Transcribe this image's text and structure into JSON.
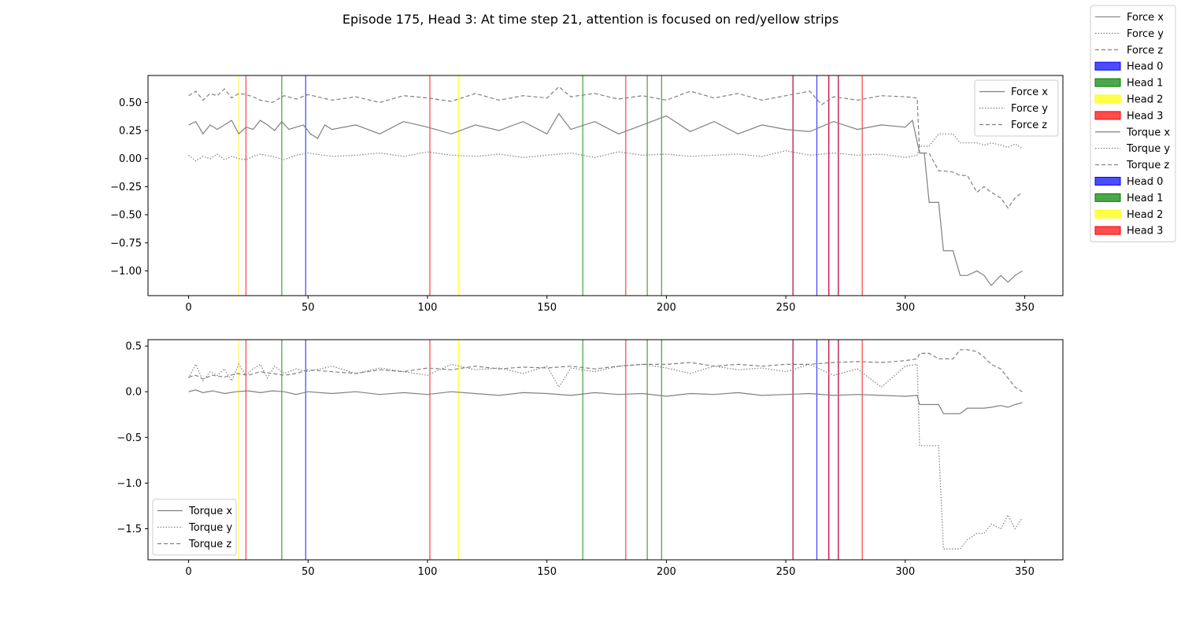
{
  "figure": {
    "title": "Episode 175, Head 3: At time step 21, attention is focused on red/yellow strips"
  },
  "figure_legend": [
    {
      "label": "Force x",
      "kind": "line",
      "dash": "solid"
    },
    {
      "label": "Force y",
      "kind": "line",
      "dash": "dotted"
    },
    {
      "label": "Force z",
      "kind": "line",
      "dash": "dashed"
    },
    {
      "label": "Head 0",
      "kind": "patch",
      "color": "#0000ff"
    },
    {
      "label": "Head 1",
      "kind": "patch",
      "color": "#008000"
    },
    {
      "label": "Head 2",
      "kind": "patch",
      "color": "#ffff00"
    },
    {
      "label": "Head 3",
      "kind": "patch",
      "color": "#ff0000"
    },
    {
      "label": "Torque x",
      "kind": "line",
      "dash": "solid"
    },
    {
      "label": "Torque y",
      "kind": "line",
      "dash": "dotted"
    },
    {
      "label": "Torque z",
      "kind": "line",
      "dash": "dashed"
    },
    {
      "label": "Head 0",
      "kind": "patch",
      "color": "#0000ff"
    },
    {
      "label": "Head 1",
      "kind": "patch",
      "color": "#008000"
    },
    {
      "label": "Head 2",
      "kind": "patch",
      "color": "#ffff00"
    },
    {
      "label": "Head 3",
      "kind": "patch",
      "color": "#ff0000"
    }
  ],
  "colors": {
    "line": "#808080",
    "head_0": "#0000ff",
    "head_1": "#008000",
    "head_2": "#ffff00",
    "head_3": "#ff0000"
  },
  "chart_data": [
    {
      "type": "line",
      "title": "",
      "xlabel": "",
      "ylabel": "",
      "xlim": [
        -17,
        366
      ],
      "ylim": [
        -1.22,
        0.74
      ],
      "xticks": [
        0,
        50,
        100,
        150,
        200,
        250,
        300,
        350
      ],
      "yticks": [
        -1.0,
        -0.75,
        -0.5,
        -0.25,
        0.0,
        0.25,
        0.5
      ],
      "ytick_labels": [
        "−1.00",
        "−0.75",
        "−0.50",
        "−0.25",
        "0.00",
        "0.25",
        "0.50"
      ],
      "legend_position": "upper right",
      "attention_strips": [
        {
          "x": 21,
          "head": "Head 2"
        },
        {
          "x": 24,
          "head": "Head 3"
        },
        {
          "x": 39,
          "head": "Head 1"
        },
        {
          "x": 49,
          "head": "Head 0"
        },
        {
          "x": 101,
          "head": "Head 3"
        },
        {
          "x": 113,
          "head": "Head 2"
        },
        {
          "x": 165,
          "head": "Head 1"
        },
        {
          "x": 183,
          "head": "Head 3"
        },
        {
          "x": 192,
          "head": "Head 1"
        },
        {
          "x": 198,
          "head": "Head 1"
        },
        {
          "x": 253,
          "head": "Head 0"
        },
        {
          "x": 253,
          "head": "Head 3"
        },
        {
          "x": 263,
          "head": "Head 0"
        },
        {
          "x": 268,
          "head": "Head 0"
        },
        {
          "x": 268,
          "head": "Head 3"
        },
        {
          "x": 272,
          "head": "Head 0"
        },
        {
          "x": 272,
          "head": "Head 3"
        },
        {
          "x": 282,
          "head": "Head 3"
        }
      ],
      "series": [
        {
          "name": "Force x",
          "dash": "solid",
          "x": [
            0,
            3,
            6,
            9,
            12,
            15,
            18,
            21,
            24,
            27,
            30,
            33,
            36,
            39,
            42,
            45,
            48,
            51,
            54,
            57,
            60,
            70,
            80,
            90,
            100,
            110,
            120,
            130,
            140,
            150,
            155,
            160,
            170,
            180,
            190,
            200,
            210,
            220,
            230,
            240,
            250,
            260,
            270,
            280,
            290,
            300,
            303,
            306,
            308,
            310,
            314,
            316,
            320,
            323,
            326,
            330,
            333,
            336,
            340,
            343,
            346,
            349
          ],
          "y": [
            0.3,
            0.33,
            0.22,
            0.3,
            0.26,
            0.3,
            0.34,
            0.22,
            0.28,
            0.26,
            0.34,
            0.3,
            0.25,
            0.33,
            0.26,
            0.28,
            0.3,
            0.22,
            0.18,
            0.3,
            0.26,
            0.3,
            0.22,
            0.33,
            0.28,
            0.22,
            0.3,
            0.25,
            0.33,
            0.22,
            0.4,
            0.26,
            0.33,
            0.22,
            0.3,
            0.38,
            0.24,
            0.33,
            0.22,
            0.3,
            0.26,
            0.24,
            0.33,
            0.26,
            0.3,
            0.28,
            0.34,
            0.05,
            0.05,
            -0.39,
            -0.39,
            -0.82,
            -0.82,
            -1.04,
            -1.04,
            -1.0,
            -1.04,
            -1.13,
            -1.04,
            -1.1,
            -1.04,
            -1.0
          ]
        },
        {
          "name": "Force y",
          "dash": "dotted",
          "x": [
            0,
            3,
            6,
            9,
            12,
            15,
            18,
            21,
            24,
            27,
            30,
            35,
            40,
            45,
            50,
            60,
            70,
            80,
            90,
            100,
            110,
            120,
            130,
            140,
            150,
            160,
            170,
            180,
            190,
            200,
            210,
            220,
            230,
            240,
            250,
            260,
            270,
            280,
            290,
            300,
            305,
            306,
            310,
            314,
            316,
            320,
            323,
            326,
            330,
            333,
            336,
            340,
            343,
            346,
            349
          ],
          "y": [
            0.03,
            -0.02,
            0.02,
            0.0,
            0.04,
            -0.01,
            0.02,
            0.0,
            -0.01,
            0.02,
            0.04,
            0.02,
            -0.01,
            0.03,
            0.05,
            0.02,
            0.03,
            0.05,
            0.02,
            0.06,
            0.03,
            0.02,
            0.04,
            0.01,
            0.03,
            0.05,
            0.01,
            0.06,
            0.03,
            0.04,
            0.02,
            0.03,
            0.04,
            0.02,
            0.07,
            0.03,
            0.05,
            0.03,
            0.04,
            0.01,
            0.03,
            0.11,
            0.11,
            0.22,
            0.22,
            0.22,
            0.14,
            0.14,
            0.14,
            0.12,
            0.14,
            0.12,
            0.1,
            0.13,
            0.09
          ]
        },
        {
          "name": "Force z",
          "dash": "dashed",
          "x": [
            0,
            3,
            6,
            9,
            12,
            15,
            18,
            21,
            24,
            27,
            30,
            35,
            40,
            45,
            50,
            60,
            70,
            80,
            90,
            100,
            110,
            120,
            130,
            140,
            150,
            155,
            160,
            170,
            180,
            190,
            200,
            210,
            220,
            230,
            240,
            250,
            260,
            265,
            270,
            280,
            290,
            300,
            305,
            306,
            310,
            314,
            316,
            320,
            323,
            326,
            330,
            333,
            336,
            340,
            343,
            346,
            349
          ],
          "y": [
            0.56,
            0.6,
            0.52,
            0.58,
            0.56,
            0.62,
            0.54,
            0.58,
            0.57,
            0.55,
            0.52,
            0.5,
            0.56,
            0.53,
            0.57,
            0.52,
            0.55,
            0.5,
            0.56,
            0.54,
            0.51,
            0.58,
            0.52,
            0.56,
            0.54,
            0.64,
            0.55,
            0.58,
            0.53,
            0.56,
            0.52,
            0.6,
            0.54,
            0.58,
            0.52,
            0.56,
            0.6,
            0.48,
            0.55,
            0.52,
            0.56,
            0.55,
            0.54,
            0.05,
            0.05,
            -0.11,
            -0.11,
            -0.12,
            -0.15,
            -0.15,
            -0.3,
            -0.25,
            -0.3,
            -0.35,
            -0.44,
            -0.35,
            -0.3
          ]
        }
      ]
    },
    {
      "type": "line",
      "title": "",
      "xlabel": "",
      "ylabel": "",
      "xlim": [
        -17,
        366
      ],
      "ylim": [
        -1.84,
        0.57
      ],
      "xticks": [
        0,
        50,
        100,
        150,
        200,
        250,
        300,
        350
      ],
      "yticks": [
        -1.5,
        -1.0,
        -0.5,
        0.0,
        0.5
      ],
      "ytick_labels": [
        "−1.5",
        "−1.0",
        "−0.5",
        "0.0",
        "0.5"
      ],
      "legend_position": "lower left",
      "attention_strips": [
        {
          "x": 21,
          "head": "Head 2"
        },
        {
          "x": 24,
          "head": "Head 3"
        },
        {
          "x": 39,
          "head": "Head 1"
        },
        {
          "x": 49,
          "head": "Head 0"
        },
        {
          "x": 101,
          "head": "Head 3"
        },
        {
          "x": 113,
          "head": "Head 2"
        },
        {
          "x": 165,
          "head": "Head 1"
        },
        {
          "x": 183,
          "head": "Head 3"
        },
        {
          "x": 192,
          "head": "Head 1"
        },
        {
          "x": 198,
          "head": "Head 1"
        },
        {
          "x": 253,
          "head": "Head 0"
        },
        {
          "x": 253,
          "head": "Head 3"
        },
        {
          "x": 263,
          "head": "Head 0"
        },
        {
          "x": 268,
          "head": "Head 0"
        },
        {
          "x": 268,
          "head": "Head 3"
        },
        {
          "x": 272,
          "head": "Head 0"
        },
        {
          "x": 272,
          "head": "Head 3"
        },
        {
          "x": 282,
          "head": "Head 3"
        }
      ],
      "series": [
        {
          "name": "Torque x",
          "dash": "solid",
          "x": [
            0,
            3,
            6,
            10,
            15,
            20,
            25,
            30,
            35,
            40,
            45,
            50,
            60,
            70,
            80,
            90,
            100,
            110,
            120,
            130,
            140,
            150,
            160,
            170,
            180,
            190,
            200,
            210,
            220,
            230,
            240,
            250,
            260,
            270,
            280,
            290,
            300,
            305,
            306,
            310,
            314,
            316,
            320,
            323,
            326,
            330,
            333,
            336,
            340,
            343,
            346,
            349
          ],
          "y": [
            0.0,
            0.02,
            -0.01,
            0.01,
            -0.02,
            0.0,
            0.01,
            -0.01,
            0.01,
            0.0,
            -0.03,
            0.0,
            -0.02,
            0.0,
            -0.03,
            -0.01,
            -0.03,
            0.0,
            -0.02,
            -0.04,
            -0.01,
            -0.02,
            -0.04,
            -0.01,
            -0.03,
            -0.02,
            -0.05,
            -0.02,
            -0.03,
            -0.01,
            -0.04,
            -0.03,
            -0.02,
            -0.04,
            -0.03,
            -0.04,
            -0.05,
            -0.04,
            -0.14,
            -0.14,
            -0.14,
            -0.24,
            -0.24,
            -0.24,
            -0.18,
            -0.18,
            -0.18,
            -0.17,
            -0.15,
            -0.17,
            -0.14,
            -0.12
          ]
        },
        {
          "name": "Torque y",
          "dash": "dotted",
          "x": [
            0,
            3,
            6,
            9,
            12,
            15,
            18,
            21,
            24,
            27,
            30,
            33,
            36,
            40,
            45,
            50,
            60,
            70,
            80,
            90,
            100,
            110,
            120,
            130,
            140,
            150,
            155,
            160,
            170,
            180,
            190,
            200,
            210,
            220,
            230,
            240,
            250,
            260,
            270,
            280,
            290,
            300,
            305,
            306,
            310,
            314,
            316,
            320,
            323,
            326,
            330,
            333,
            336,
            340,
            343,
            346,
            349
          ],
          "y": [
            0.15,
            0.3,
            0.12,
            0.22,
            0.18,
            0.25,
            0.12,
            0.3,
            0.18,
            0.25,
            0.3,
            0.15,
            0.28,
            0.2,
            0.25,
            0.22,
            0.28,
            0.2,
            0.26,
            0.22,
            0.18,
            0.3,
            0.24,
            0.26,
            0.2,
            0.28,
            0.05,
            0.26,
            0.22,
            0.28,
            0.3,
            0.26,
            0.2,
            0.28,
            0.24,
            0.26,
            0.22,
            0.3,
            0.18,
            0.25,
            0.05,
            0.28,
            0.3,
            -0.59,
            -0.59,
            -0.59,
            -1.72,
            -1.72,
            -1.72,
            -1.62,
            -1.55,
            -1.55,
            -1.45,
            -1.5,
            -1.35,
            -1.5,
            -1.38
          ]
        },
        {
          "name": "Torque z",
          "dash": "dashed",
          "x": [
            0,
            3,
            6,
            10,
            15,
            20,
            25,
            30,
            35,
            40,
            45,
            50,
            60,
            70,
            80,
            90,
            100,
            110,
            120,
            130,
            140,
            150,
            160,
            170,
            180,
            190,
            200,
            210,
            220,
            230,
            240,
            250,
            260,
            270,
            280,
            290,
            300,
            305,
            306,
            310,
            314,
            316,
            320,
            323,
            326,
            330,
            333,
            336,
            340,
            343,
            346,
            349
          ],
          "y": [
            0.16,
            0.18,
            0.14,
            0.18,
            0.16,
            0.2,
            0.18,
            0.22,
            0.2,
            0.18,
            0.2,
            0.24,
            0.22,
            0.2,
            0.24,
            0.22,
            0.26,
            0.24,
            0.28,
            0.25,
            0.27,
            0.26,
            0.28,
            0.25,
            0.28,
            0.3,
            0.3,
            0.32,
            0.28,
            0.3,
            0.28,
            0.3,
            0.3,
            0.32,
            0.33,
            0.32,
            0.34,
            0.36,
            0.42,
            0.42,
            0.36,
            0.36,
            0.36,
            0.46,
            0.46,
            0.44,
            0.38,
            0.3,
            0.25,
            0.15,
            0.05,
            0.0
          ]
        }
      ]
    }
  ]
}
